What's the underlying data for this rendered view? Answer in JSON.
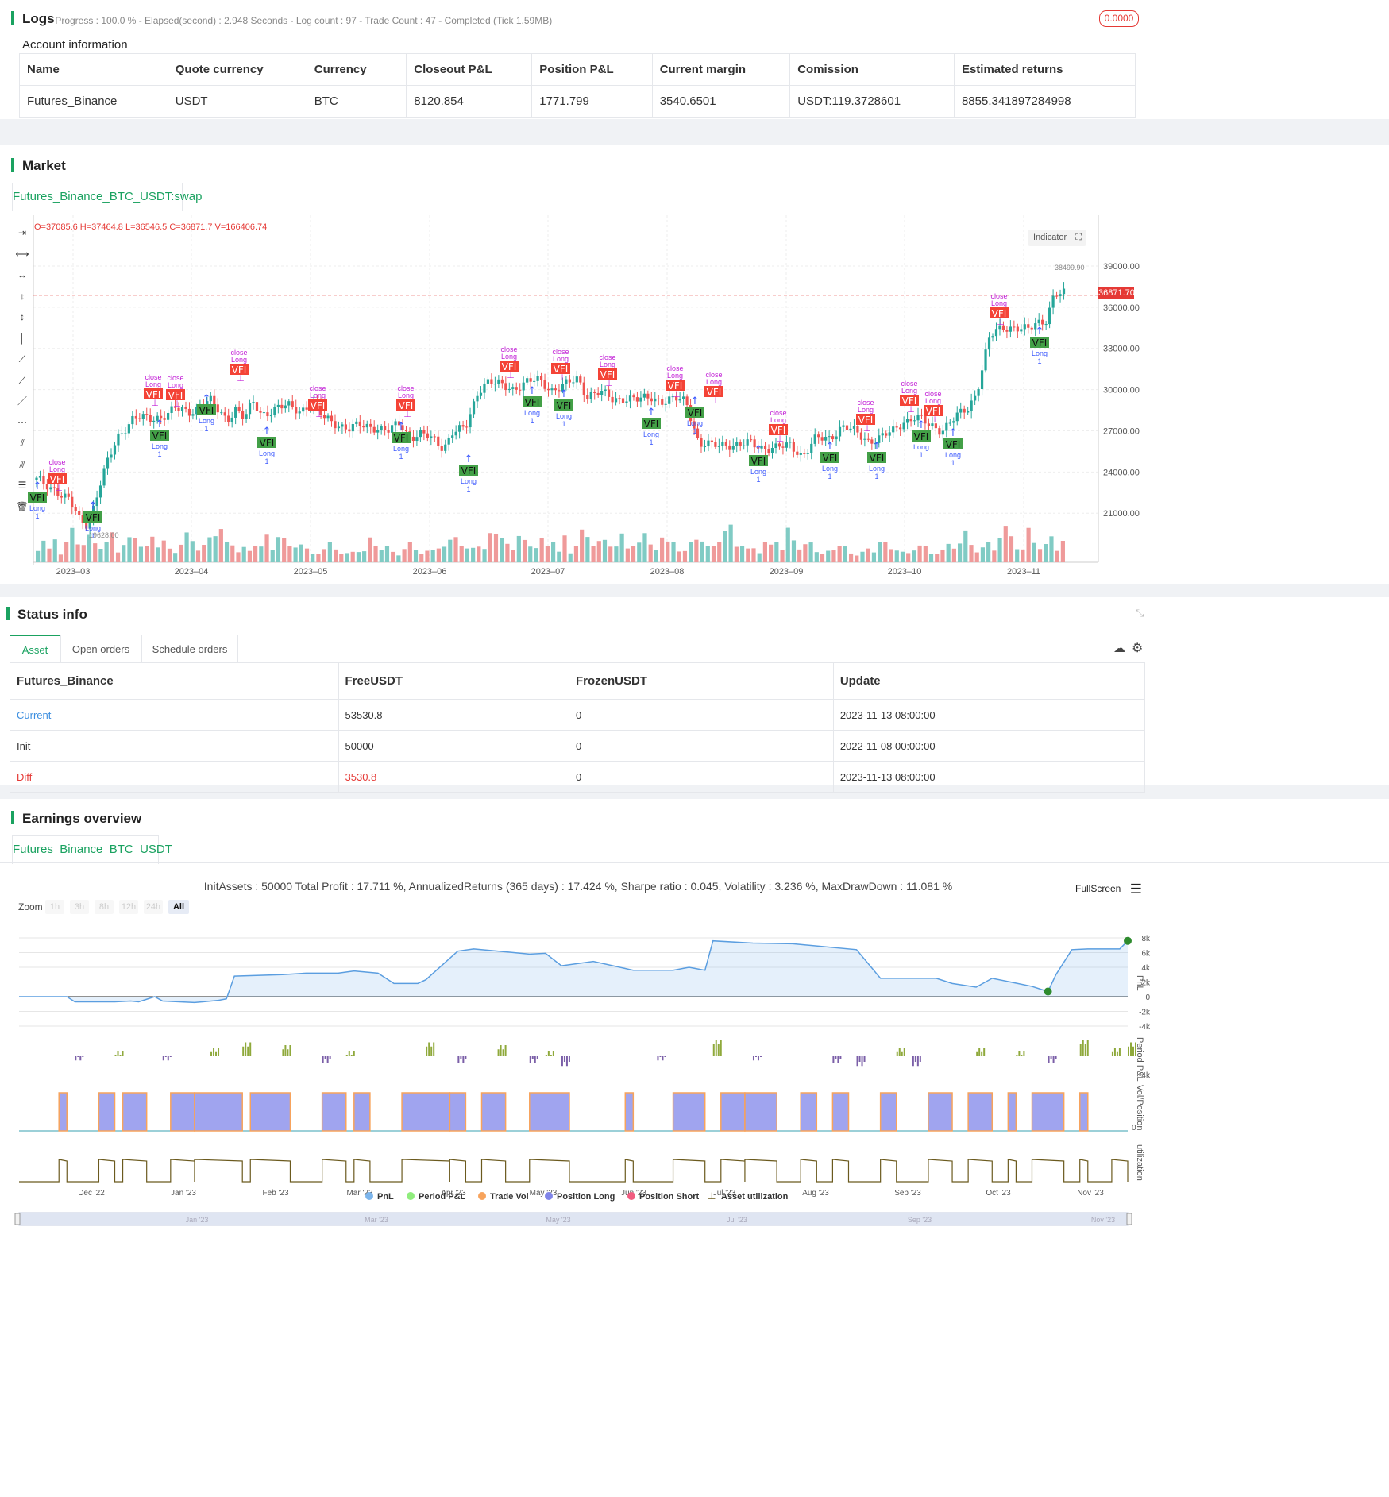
{
  "logs": {
    "title": "Logs",
    "progress": "- Progress : 100.0 % - Elapsed(second) : 2.948  Seconds - Log count : 97 - Trade Count : 47 - Completed (Tick 1.59MB)",
    "badge": "0.0000"
  },
  "account": {
    "title": "Account information",
    "headers": [
      "Name",
      "Quote currency",
      "Currency",
      "Closeout P&L",
      "Position P&L",
      "Current margin",
      "Comission",
      "Estimated returns"
    ],
    "row": [
      "Futures_Binance",
      "USDT",
      "BTC",
      "8120.854",
      "1771.799",
      "3540.6501",
      "USDT:119.3728601",
      "8855.341897284998"
    ]
  },
  "market": {
    "title": "Market",
    "tab": "Futures_Binance_BTC_USDT:swap",
    "ohlc": "O=37085.6 H=37464.8 L=36546.5 C=36871.7 V=166406.74",
    "indicator_button": "Indicator",
    "current_price": "36871.70",
    "high_label": "38499.90",
    "low_label": "19628.00",
    "marker_texts": {
      "vfi": "VFI",
      "long": "Long",
      "close": "close",
      "one": "1"
    },
    "chart_data": {
      "type": "candlestick",
      "y_ticks": [
        "39000.00",
        "36000.00",
        "33000.00",
        "30000.00",
        "27000.00",
        "24000.00",
        "21000.00"
      ],
      "x_ticks": [
        "2023–03",
        "2023–04",
        "2023–05",
        "2023–06",
        "2023–07",
        "2023–08",
        "2023–09",
        "2023–10",
        "2023–11"
      ],
      "ylim": [
        18000,
        41000
      ],
      "close_path": [
        [
          0,
          23400
        ],
        [
          8,
          22800
        ],
        [
          15,
          21900
        ],
        [
          20,
          20500
        ],
        [
          24,
          20200
        ],
        [
          28,
          22400
        ],
        [
          33,
          24800
        ],
        [
          38,
          26700
        ],
        [
          45,
          28000
        ],
        [
          52,
          27800
        ],
        [
          58,
          28100
        ],
        [
          64,
          28600
        ],
        [
          70,
          28300
        ],
        [
          76,
          28900
        ],
        [
          80,
          29200
        ],
        [
          84,
          28400
        ],
        [
          88,
          27800
        ],
        [
          92,
          28700
        ],
        [
          96,
          27900
        ],
        [
          100,
          29000
        ],
        [
          104,
          28200
        ],
        [
          110,
          28600
        ],
        [
          116,
          28800
        ],
        [
          122,
          28500
        ],
        [
          128,
          29100
        ],
        [
          132,
          28000
        ],
        [
          138,
          27600
        ],
        [
          144,
          27100
        ],
        [
          150,
          27400
        ],
        [
          156,
          27300
        ],
        [
          162,
          26900
        ],
        [
          168,
          27600
        ],
        [
          172,
          26600
        ],
        [
          178,
          26700
        ],
        [
          184,
          26300
        ],
        [
          188,
          25800
        ],
        [
          192,
          26900
        ],
        [
          198,
          27100
        ],
        [
          204,
          30000
        ],
        [
          208,
          30600
        ],
        [
          214,
          30300
        ],
        [
          220,
          30100
        ],
        [
          226,
          30500
        ],
        [
          232,
          30700
        ],
        [
          238,
          30000
        ],
        [
          244,
          30300
        ],
        [
          250,
          30800
        ],
        [
          254,
          29600
        ],
        [
          260,
          29800
        ],
        [
          266,
          29300
        ],
        [
          272,
          29400
        ],
        [
          278,
          29200
        ],
        [
          284,
          29500
        ],
        [
          290,
          29100
        ],
        [
          296,
          29300
        ],
        [
          300,
          29200
        ],
        [
          306,
          26000
        ],
        [
          312,
          25900
        ],
        [
          318,
          26100
        ],
        [
          324,
          25900
        ],
        [
          330,
          26100
        ],
        [
          336,
          25800
        ],
        [
          342,
          25700
        ],
        [
          348,
          26000
        ],
        [
          354,
          25200
        ],
        [
          360,
          26400
        ],
        [
          366,
          26500
        ],
        [
          372,
          27300
        ],
        [
          378,
          26900
        ],
        [
          384,
          26300
        ],
        [
          390,
          26500
        ],
        [
          396,
          27000
        ],
        [
          400,
          27700
        ],
        [
          406,
          28000
        ],
        [
          412,
          27400
        ],
        [
          418,
          27100
        ],
        [
          424,
          27900
        ],
        [
          430,
          28600
        ],
        [
          434,
          29800
        ],
        [
          440,
          33800
        ],
        [
          446,
          34500
        ],
        [
          452,
          34600
        ],
        [
          458,
          34300
        ],
        [
          462,
          34800
        ],
        [
          466,
          35100
        ],
        [
          470,
          37000
        ],
        [
          476,
          36900
        ]
      ],
      "volume_levels": [
        0.35,
        0.5,
        0.3,
        0.6,
        0.2,
        0.45,
        0.8,
        0.55,
        0.4,
        0.6,
        0.5,
        0.35,
        0.45,
        0.7,
        0.3,
        0.4,
        0.55,
        0.65,
        0.4,
        0.35,
        0.6,
        0.45,
        0.5,
        0.3,
        0.25,
        0.45,
        0.65,
        0.5,
        0.35,
        0.4,
        0.55,
        0.7,
        0.85,
        0.45,
        0.4,
        0.3,
        0.35,
        0.25,
        0.45,
        0.4,
        0.6,
        0.3,
        0.75,
        0.55,
        0.35,
        0.4,
        0.45,
        0.3,
        0.2,
        0.25,
        0.3,
        0.45,
        0.35,
        0.2,
        0.2,
        0.25,
        0.3,
        0.25,
        0.55,
        0.45,
        0.3,
        0.35,
        0.25,
        0.2,
        0.3,
        0.45,
        0.35,
        0.2,
        0.25,
        0.3,
        0.4,
        0.35,
        0.5,
        0.7,
        0.4,
        0.3,
        0.35,
        0.45,
        0.3,
        0.65,
        0.8,
        0.6,
        0.4,
        0.3,
        0.75,
        0.5,
        0.35,
        0.4,
        0.6
      ]
    }
  },
  "status": {
    "title": "Status info",
    "tabs": [
      "Asset",
      "Open orders",
      "Schedule orders"
    ],
    "headers": [
      "Futures_Binance",
      "FreeUSDT",
      "FrozenUSDT",
      "Update"
    ],
    "rows": [
      [
        "Current",
        "53530.8",
        "0",
        "2023-11-13 08:00:00"
      ],
      [
        "Init",
        "50000",
        "0",
        "2022-11-08 00:00:00"
      ],
      [
        "Diff",
        "3530.8",
        "0",
        "2023-11-13 08:00:00"
      ]
    ],
    "colors": {
      "current": "#3d8fe0",
      "diff": "#e53935"
    }
  },
  "earnings": {
    "title": "Earnings overview",
    "tab": "Futures_Binance_BTC_USDT",
    "summary": "InitAssets : 50000 Total Profit : 17.711 %, AnnualizedReturns (365 days) : 17.424 %, Sharpe ratio : 0.045, Volatility : 3.236 %, MaxDrawDown : 11.081 %",
    "fullscreen": "FullScreen",
    "zoom_label": "Zoom",
    "zoom_buttons": [
      "1h",
      "3h",
      "8h",
      "12h",
      "24h",
      "All"
    ],
    "pnl_ticks": [
      "8k",
      "6k",
      "4k",
      "2k",
      "0",
      "-2k",
      "-4k"
    ],
    "period_tick": "-4k",
    "pos_tick": "0",
    "axis_titles": [
      "PnL",
      "Period P&L",
      "Vol/Position",
      "utilization"
    ],
    "x_ticks": [
      "Dec '22",
      "Jan '23",
      "Feb '23",
      "Mar '23",
      "Apr '23",
      "May '23",
      "Jun '23",
      "Jul '23",
      "Aug '23",
      "Sep '23",
      "Oct '23",
      "Nov '23"
    ],
    "nav_ticks": [
      "Jan '23",
      "Mar '23",
      "May '23",
      "Jul '23",
      "Sep '23",
      "Nov '23"
    ],
    "legend": [
      {
        "name": "PnL",
        "color": "#7cb5ec"
      },
      {
        "name": "Period P&L",
        "color": "#90ed7d"
      },
      {
        "name": "Trade Vol",
        "color": "#f7a35c"
      },
      {
        "name": "Position Long",
        "color": "#8085e9"
      },
      {
        "name": "Position Short",
        "color": "#f15c80"
      },
      {
        "name": "Asset utilization",
        "color": "#6b5a1e"
      }
    ],
    "chart_data": {
      "type": "line",
      "pnl": [
        [
          0,
          0
        ],
        [
          6,
          0
        ],
        [
          7,
          -700
        ],
        [
          12,
          -700
        ],
        [
          14,
          -600
        ],
        [
          15,
          -700
        ],
        [
          17,
          0
        ],
        [
          18,
          -600
        ],
        [
          22,
          -800
        ],
        [
          25,
          -500
        ],
        [
          26,
          -300
        ],
        [
          27,
          2800
        ],
        [
          33,
          3000
        ],
        [
          36,
          3200
        ],
        [
          40,
          3200
        ],
        [
          42,
          3500
        ],
        [
          45,
          3200
        ],
        [
          47,
          1800
        ],
        [
          50,
          1800
        ],
        [
          51,
          2300
        ],
        [
          55,
          6200
        ],
        [
          57,
          6500
        ],
        [
          60,
          6200
        ],
        [
          64,
          5800
        ],
        [
          66,
          5900
        ],
        [
          68,
          4200
        ],
        [
          72,
          4800
        ],
        [
          77,
          3600
        ],
        [
          82,
          3600
        ],
        [
          84,
          4000
        ],
        [
          86,
          3600
        ],
        [
          87,
          7600
        ],
        [
          92,
          7300
        ],
        [
          97,
          7200
        ],
        [
          105,
          6400
        ],
        [
          108,
          2500
        ],
        [
          115,
          2500
        ],
        [
          117,
          1800
        ],
        [
          120,
          1300
        ],
        [
          122,
          2500
        ],
        [
          127,
          1400
        ],
        [
          129,
          700
        ],
        [
          130,
          3000
        ],
        [
          132,
          6400
        ],
        [
          134,
          6500
        ],
        [
          138,
          6500
        ],
        [
          139,
          7600
        ]
      ],
      "period_pnl": [
        [
          7,
          -1
        ],
        [
          12,
          1
        ],
        [
          18,
          -1
        ],
        [
          24,
          2
        ],
        [
          28,
          4
        ],
        [
          33,
          3
        ],
        [
          38,
          -2
        ],
        [
          41,
          1
        ],
        [
          51,
          4
        ],
        [
          55,
          -2
        ],
        [
          60,
          3
        ],
        [
          64,
          -2
        ],
        [
          66,
          1
        ],
        [
          68,
          -3
        ],
        [
          80,
          -1
        ],
        [
          87,
          5
        ],
        [
          92,
          -1
        ],
        [
          102,
          -2
        ],
        [
          105,
          -3
        ],
        [
          110,
          2
        ],
        [
          112,
          -3
        ],
        [
          120,
          2
        ],
        [
          125,
          1
        ],
        [
          129,
          -2
        ],
        [
          133,
          5
        ],
        [
          137,
          2
        ],
        [
          139,
          4
        ]
      ],
      "positions": [
        [
          5,
          6
        ],
        [
          10,
          12
        ],
        [
          13,
          16
        ],
        [
          19,
          22
        ],
        [
          22,
          28
        ],
        [
          29,
          34
        ],
        [
          38,
          41
        ],
        [
          42,
          44
        ],
        [
          48,
          54
        ],
        [
          54,
          56
        ],
        [
          58,
          61
        ],
        [
          64,
          69
        ],
        [
          76,
          77
        ],
        [
          82,
          86
        ],
        [
          88,
          91
        ],
        [
          91,
          95
        ],
        [
          98,
          100
        ],
        [
          102,
          104
        ],
        [
          108,
          110
        ],
        [
          114,
          117
        ],
        [
          119,
          122
        ],
        [
          124,
          125
        ],
        [
          127,
          131
        ],
        [
          133,
          134
        ]
      ],
      "utilization": [
        [
          5,
          6
        ],
        [
          10,
          12
        ],
        [
          13,
          16
        ],
        [
          19,
          22
        ],
        [
          22,
          28
        ],
        [
          29,
          34
        ],
        [
          38,
          41
        ],
        [
          42,
          44
        ],
        [
          48,
          54
        ],
        [
          54,
          56
        ],
        [
          58,
          61
        ],
        [
          64,
          69
        ],
        [
          76,
          77
        ],
        [
          82,
          86
        ],
        [
          88,
          91
        ],
        [
          91,
          95
        ],
        [
          98,
          100
        ],
        [
          102,
          104
        ],
        [
          108,
          110
        ],
        [
          114,
          117
        ],
        [
          119,
          122
        ],
        [
          124,
          125
        ],
        [
          127,
          131
        ],
        [
          133,
          134
        ],
        [
          137,
          139
        ]
      ]
    }
  }
}
